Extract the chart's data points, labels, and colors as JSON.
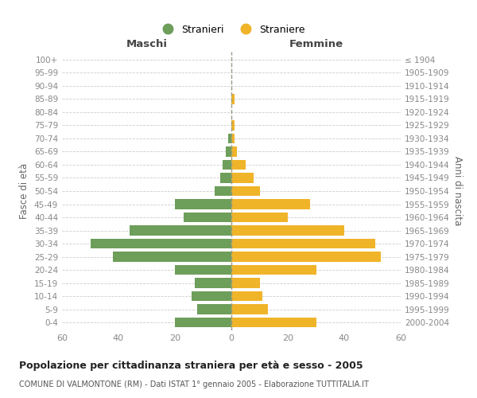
{
  "age_groups": [
    "100+",
    "95-99",
    "90-94",
    "85-89",
    "80-84",
    "75-79",
    "70-74",
    "65-69",
    "60-64",
    "55-59",
    "50-54",
    "45-49",
    "40-44",
    "35-39",
    "30-34",
    "25-29",
    "20-24",
    "15-19",
    "10-14",
    "5-9",
    "0-4"
  ],
  "birth_years": [
    "≤ 1904",
    "1905-1909",
    "1910-1914",
    "1915-1919",
    "1920-1924",
    "1925-1929",
    "1930-1934",
    "1935-1939",
    "1940-1944",
    "1945-1949",
    "1950-1954",
    "1955-1959",
    "1960-1964",
    "1965-1969",
    "1970-1974",
    "1975-1979",
    "1980-1984",
    "1985-1989",
    "1990-1994",
    "1995-1999",
    "2000-2004"
  ],
  "maschi": [
    0,
    0,
    0,
    0,
    0,
    0,
    1,
    2,
    3,
    4,
    6,
    20,
    17,
    36,
    50,
    42,
    20,
    13,
    14,
    12,
    20
  ],
  "femmine": [
    0,
    0,
    0,
    1,
    0,
    1,
    1,
    2,
    5,
    8,
    10,
    28,
    20,
    40,
    51,
    53,
    30,
    10,
    11,
    13,
    30
  ],
  "male_color": "#6d9e5a",
  "female_color": "#f0b429",
  "grid_color": "#cccccc",
  "axis_label_color": "#666666",
  "tick_label_color": "#888888",
  "center_line_color": "#999988",
  "xlim": 60,
  "title": "Popolazione per cittadinanza straniera per età e sesso - 2005",
  "subtitle": "COMUNE DI VALMONTONE (RM) - Dati ISTAT 1° gennaio 2005 - Elaborazione TUTTITALIA.IT",
  "legend_stranieri": "Stranieri",
  "legend_straniere": "Straniere",
  "ylabel_left": "Fasce di età",
  "ylabel_right": "Anni di nascita",
  "header_maschi": "Maschi",
  "header_femmine": "Femmine"
}
